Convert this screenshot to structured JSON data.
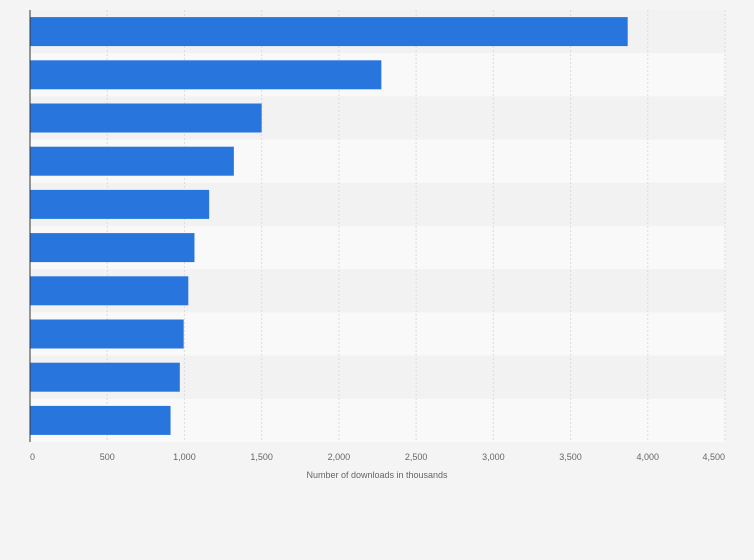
{
  "colors": {
    "bar": "#2876dd",
    "band_light": "#f9f9f9",
    "band_dark": "#f2f2f2",
    "grid": "#dcdcdc",
    "axis": "#333333",
    "text": "#666666"
  },
  "chart_data": {
    "type": "bar",
    "orientation": "horizontal",
    "title": "",
    "xlabel": "Number of downloads in thousands",
    "ylabel": "",
    "categories": [
      "",
      "",
      "",
      "",
      "",
      "",
      "",
      "",
      "",
      ""
    ],
    "values": [
      3870,
      2275,
      1500,
      1320,
      1160,
      1065,
      1025,
      995,
      970,
      910
    ],
    "xlim": [
      0,
      4500
    ],
    "xticks": [
      0,
      500,
      1000,
      1500,
      2000,
      2500,
      3000,
      3500,
      4000,
      4500
    ],
    "xtick_labels": [
      "0",
      "500",
      "1,000",
      "1,500",
      "2,000",
      "2,500",
      "3,000",
      "3,500",
      "4,000",
      "4,500"
    ],
    "grid": true,
    "legend": "none"
  }
}
